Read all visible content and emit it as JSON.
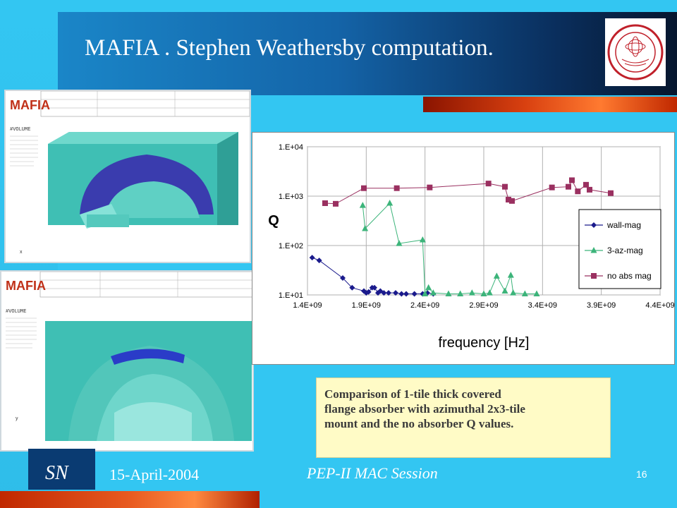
{
  "slide": {
    "title": "MAFIA . Stephen Weathersby computation.",
    "footer_initials": "SN",
    "date": "15-April-2004",
    "session": "PEP-II MAC Session",
    "page_number": "16",
    "caption": "Comparison of 1-tile thick covered\nflange absorber with azimuthal 2x3-tile\nmount and the no absorber Q values."
  },
  "screenshots": {
    "top_logo": "MAFIA",
    "top_label": "#VOLUME",
    "bottom_logo": "MAFIA",
    "bottom_label": "#VOLUME"
  },
  "colors": {
    "slide_bg": "#33c6f2",
    "wall_mag": "#1a1a8c",
    "az_mag": "#3cb47a",
    "no_abs_mag": "#9a3060"
  },
  "chart_data": {
    "type": "scatter",
    "xlabel": "frequency [Hz]",
    "ylabel": "Q",
    "xscale": "linear",
    "yscale": "log",
    "xlim": [
      1400000000,
      4400000000
    ],
    "ylim": [
      10,
      10000
    ],
    "x_ticks": [
      "1.4E+09",
      "1.9E+09",
      "2.4E+09",
      "2.9E+09",
      "3.4E+09",
      "3.9E+09",
      "4.4E+09"
    ],
    "x_tick_values": [
      1400000000,
      1900000000,
      2400000000,
      2900000000,
      3400000000,
      3900000000,
      4400000000
    ],
    "y_ticks": [
      "1.E+01",
      "1.E+02",
      "1.E+03",
      "1.E+04"
    ],
    "y_tick_values": [
      10,
      100,
      1000,
      10000
    ],
    "grid": true,
    "legend_position": "right",
    "series": [
      {
        "name": "wall-mag",
        "marker": "diamond",
        "points": [
          [
            1440000000,
            57
          ],
          [
            1500000000,
            50
          ],
          [
            1700000000,
            22
          ],
          [
            1780000000,
            14
          ],
          [
            1880000000,
            12
          ],
          [
            1900000000,
            11
          ],
          [
            1920000000,
            11.5
          ],
          [
            1950000000,
            14
          ],
          [
            1970000000,
            14
          ],
          [
            2000000000,
            11
          ],
          [
            2020000000,
            12
          ],
          [
            2050000000,
            11
          ],
          [
            2090000000,
            11
          ],
          [
            2150000000,
            11
          ],
          [
            2200000000,
            10.5
          ],
          [
            2240000000,
            10.5
          ],
          [
            2310000000,
            10.5
          ],
          [
            2380000000,
            10.5
          ],
          [
            2420000000,
            11
          ],
          [
            2470000000,
            10.5
          ]
        ]
      },
      {
        "name": "3-az-mag",
        "marker": "triangle",
        "points": [
          [
            1870000000,
            650
          ],
          [
            1890000000,
            220
          ],
          [
            2100000000,
            720
          ],
          [
            2180000000,
            110
          ],
          [
            2380000000,
            130
          ],
          [
            2400000000,
            10.5
          ],
          [
            2430000000,
            14
          ],
          [
            2470000000,
            11
          ],
          [
            2600000000,
            10.5
          ],
          [
            2700000000,
            10.5
          ],
          [
            2800000000,
            11
          ],
          [
            2900000000,
            10.5
          ],
          [
            2950000000,
            11
          ],
          [
            3010000000,
            24
          ],
          [
            3080000000,
            12
          ],
          [
            3130000000,
            25
          ],
          [
            3150000000,
            11
          ],
          [
            3250000000,
            10.5
          ],
          [
            3350000000,
            10.5
          ]
        ]
      },
      {
        "name": "no abs mag",
        "marker": "square",
        "points": [
          [
            1550000000,
            720
          ],
          [
            1640000000,
            700
          ],
          [
            1880000000,
            1450
          ],
          [
            2160000000,
            1450
          ],
          [
            2440000000,
            1500
          ],
          [
            2940000000,
            1800
          ],
          [
            3080000000,
            1550
          ],
          [
            3110000000,
            850
          ],
          [
            3140000000,
            800
          ],
          [
            3480000000,
            1500
          ],
          [
            3620000000,
            1550
          ],
          [
            3650000000,
            2100
          ],
          [
            3700000000,
            1250
          ],
          [
            3770000000,
            1700
          ],
          [
            3800000000,
            1350
          ],
          [
            3980000000,
            1150
          ]
        ]
      }
    ]
  }
}
